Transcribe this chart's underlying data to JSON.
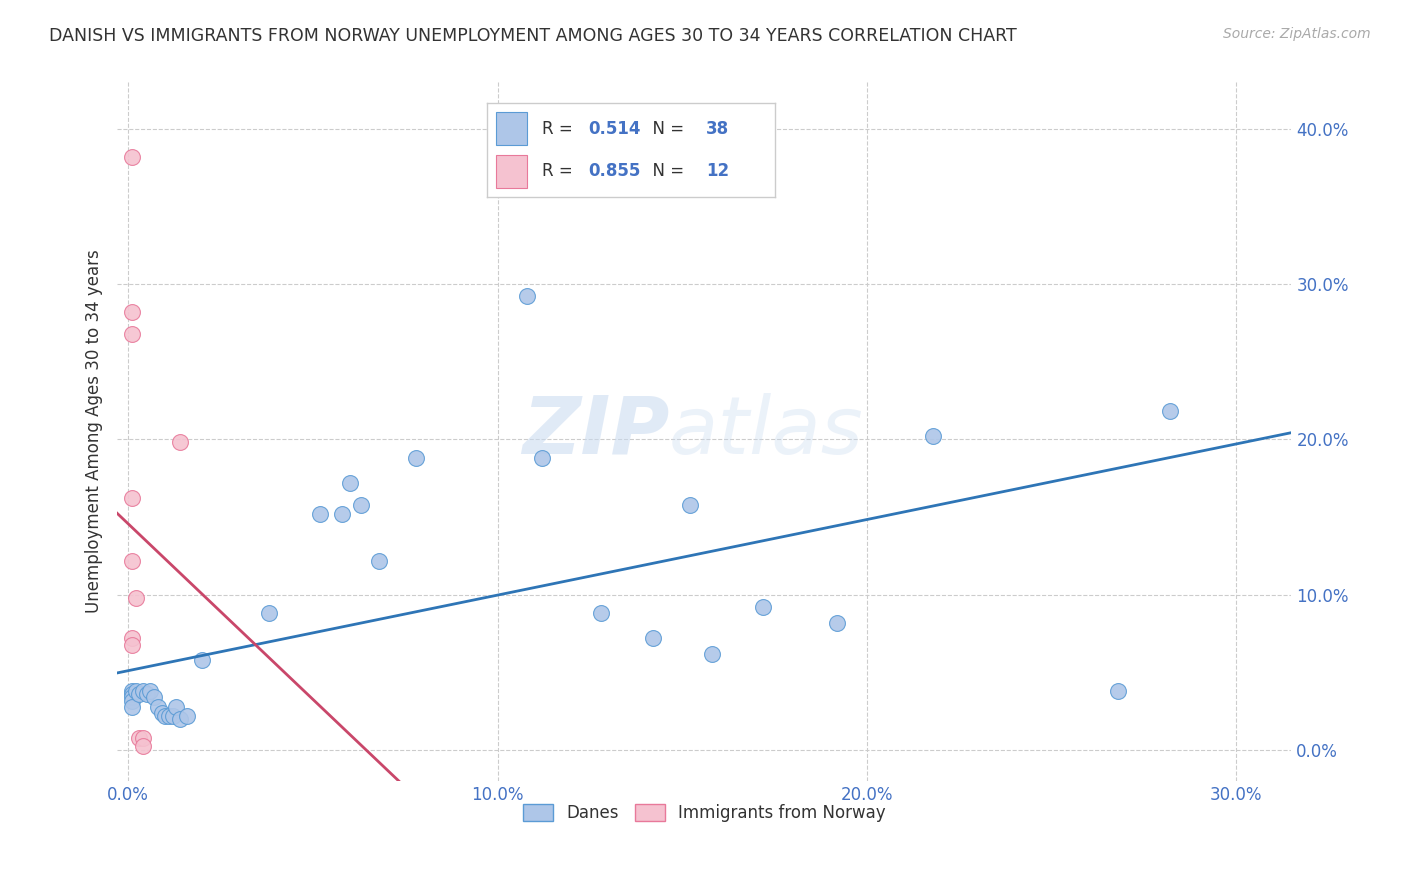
{
  "title": "DANISH VS IMMIGRANTS FROM NORWAY UNEMPLOYMENT AMONG AGES 30 TO 34 YEARS CORRELATION CHART",
  "source": "Source: ZipAtlas.com",
  "ylabel_label": "Unemployment Among Ages 30 to 34 years",
  "xmin": -0.003,
  "xmax": 0.315,
  "ymin": -0.02,
  "ymax": 0.43,
  "danes_x": [
    0.001,
    0.001,
    0.001,
    0.001,
    0.001,
    0.002,
    0.003,
    0.004,
    0.005,
    0.006,
    0.007,
    0.008,
    0.009,
    0.01,
    0.011,
    0.012,
    0.013,
    0.014,
    0.016,
    0.02,
    0.038,
    0.052,
    0.058,
    0.06,
    0.063,
    0.068,
    0.078,
    0.108,
    0.112,
    0.128,
    0.142,
    0.152,
    0.158,
    0.172,
    0.192,
    0.218,
    0.268,
    0.282
  ],
  "danes_y": [
    0.038,
    0.036,
    0.034,
    0.032,
    0.028,
    0.038,
    0.036,
    0.038,
    0.036,
    0.038,
    0.034,
    0.028,
    0.024,
    0.022,
    0.022,
    0.022,
    0.028,
    0.02,
    0.022,
    0.058,
    0.088,
    0.152,
    0.152,
    0.172,
    0.158,
    0.122,
    0.188,
    0.292,
    0.188,
    0.088,
    0.072,
    0.158,
    0.062,
    0.092,
    0.082,
    0.202,
    0.038,
    0.218
  ],
  "norway_x": [
    0.001,
    0.001,
    0.001,
    0.001,
    0.001,
    0.001,
    0.001,
    0.002,
    0.003,
    0.004,
    0.004,
    0.014
  ],
  "norway_y": [
    0.072,
    0.068,
    0.122,
    0.162,
    0.268,
    0.282,
    0.382,
    0.098,
    0.008,
    0.008,
    0.003,
    0.198
  ],
  "danes_color": "#aec6e8",
  "danes_edge_color": "#5b9bd5",
  "norway_color": "#f5c2d0",
  "norway_edge_color": "#e8799a",
  "regression_danes_color": "#2e75b6",
  "regression_norway_color": "#c9476a",
  "danes_r": 0.514,
  "danes_n": 38,
  "norway_r": 0.855,
  "norway_n": 12,
  "marker_size": 130,
  "watermark_zip": "ZIP",
  "watermark_atlas": "atlas",
  "legend_label_danes": "Danes",
  "legend_label_norway": "Immigrants from Norway",
  "grid_color": "#cccccc",
  "background_color": "#ffffff",
  "xtick_vals": [
    0.0,
    0.1,
    0.2,
    0.3
  ],
  "ytick_vals": [
    0.0,
    0.1,
    0.2,
    0.3,
    0.4
  ]
}
